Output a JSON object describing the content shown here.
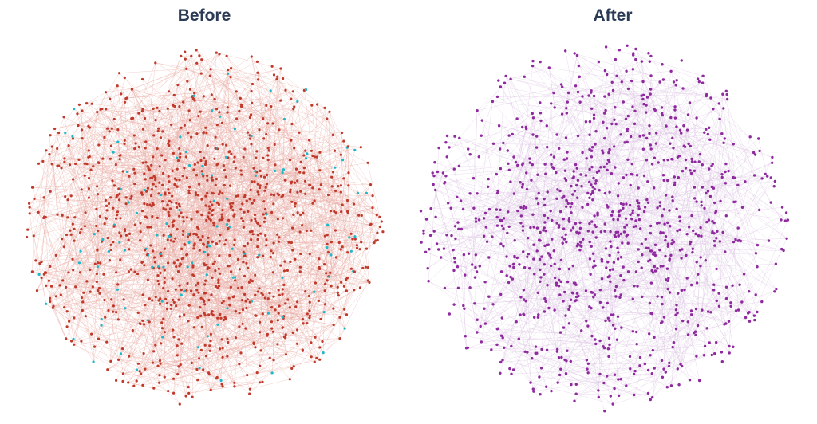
{
  "panels": [
    {
      "id": "before",
      "title": "Before",
      "node_color": "#c0392b",
      "edge_color": "#e8a9a3",
      "secondary_node_color": "#1fb8c9",
      "secondary_fraction": 0.09,
      "node_count": 1300,
      "density": "high"
    },
    {
      "id": "after",
      "title": "After",
      "node_color": "#8e2a9e",
      "edge_color": "#d9bfe0",
      "node_count": 1100,
      "density": "medium"
    }
  ]
}
